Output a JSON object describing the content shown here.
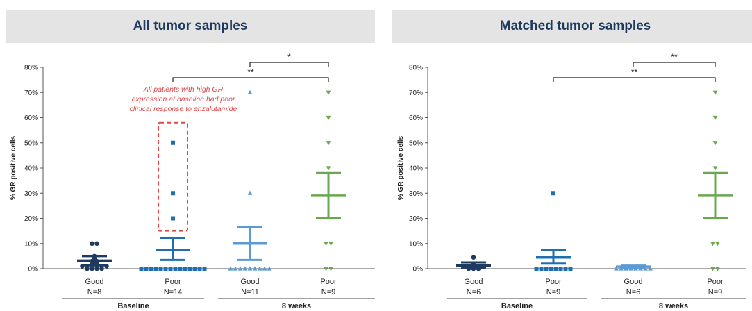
{
  "colors": {
    "dark_navy": "#1f3a5f",
    "mid_blue": "#1f6fb0",
    "light_blue": "#5b9bd5",
    "green": "#6aa84f",
    "annotation_red": "#e04848",
    "header_bg": "#e4e4e4"
  },
  "chart_data": [
    {
      "type": "scatter",
      "title": "All tumor samples",
      "ylabel": "% GR positive cells",
      "ylim": [
        0,
        80
      ],
      "yticks": [
        "0%",
        "10%",
        "20%",
        "30%",
        "40%",
        "50%",
        "60%",
        "70%",
        "80%"
      ],
      "categories": [
        {
          "label": "Good",
          "n": "N=8",
          "group": "Baseline",
          "color": "#1f3a5f",
          "marker": "circle",
          "points": [
            0,
            0,
            0,
            0,
            1,
            1,
            1,
            1,
            1,
            1,
            2,
            2,
            3,
            3,
            4,
            5,
            10,
            10
          ],
          "mean": 3.2,
          "sd_low": 1.5,
          "sd_high": 5
        },
        {
          "label": "Poor",
          "n": "N=14",
          "group": "Baseline",
          "color": "#1f6fb0",
          "marker": "square",
          "points": [
            0,
            0,
            0,
            0,
            0,
            0,
            0,
            0,
            0,
            0,
            0,
            0,
            0,
            0,
            20,
            30,
            50
          ],
          "mean": 7.5,
          "sd_low": 3.5,
          "sd_high": 12
        },
        {
          "label": "Good",
          "n": "N=11",
          "group": "8 weeks",
          "color": "#5b9bd5",
          "marker": "triangle-up",
          "points": [
            0,
            0,
            0,
            0,
            0,
            0,
            0,
            0,
            0,
            30,
            70
          ],
          "mean": 10,
          "sd_low": 3.5,
          "sd_high": 16.5
        },
        {
          "label": "Poor",
          "n": "N=9",
          "group": "8 weeks",
          "color": "#6aa84f",
          "marker": "triangle-down",
          "points": [
            0,
            0,
            10,
            10,
            40,
            50,
            60,
            70
          ],
          "mean": 29,
          "sd_low": 20,
          "sd_high": 38
        }
      ],
      "groups": [
        "Baseline",
        "8 weeks"
      ],
      "significance": [
        {
          "from": 2,
          "to": 3,
          "label": "*",
          "y": 81
        },
        {
          "from": 1,
          "to": 3,
          "label": "**",
          "y": 75
        }
      ],
      "annotation": "All patients with high GR expression at baseline had poor clinical response to enzalutamide",
      "annotation_lines": [
        "All patients with high GR",
        "expression at baseline had poor",
        "clinical response to enzalutamide"
      ]
    },
    {
      "type": "scatter",
      "title": "Matched tumor samples",
      "ylabel": "% GR positive cells",
      "ylim": [
        0,
        80
      ],
      "yticks": [
        "0%",
        "10%",
        "20%",
        "30%",
        "40%",
        "50%",
        "60%",
        "70%",
        "80%"
      ],
      "categories": [
        {
          "label": "Good",
          "n": "N=6",
          "group": "Baseline",
          "color": "#1f3a5f",
          "marker": "circle",
          "points": [
            0,
            0,
            0,
            1,
            1,
            1,
            1,
            2,
            4.5
          ],
          "mean": 1.3,
          "sd_low": 0.5,
          "sd_high": 2.5
        },
        {
          "label": "Poor",
          "n": "N=9",
          "group": "Baseline",
          "color": "#1f6fb0",
          "marker": "square",
          "points": [
            0,
            0,
            0,
            0,
            0,
            0,
            0,
            0,
            30
          ],
          "mean": 4.5,
          "sd_low": 2,
          "sd_high": 7.5
        },
        {
          "label": "Good",
          "n": "N=6",
          "group": "8 weeks",
          "color": "#5b9bd5",
          "marker": "triangle-up",
          "points": [
            0,
            0,
            0,
            0,
            0,
            0,
            0,
            0
          ],
          "mean": 0.8,
          "sd_low": 0.4,
          "sd_high": 1.2
        },
        {
          "label": "Poor",
          "n": "N=9",
          "group": "8 weeks",
          "color": "#6aa84f",
          "marker": "triangle-down",
          "points": [
            0,
            0,
            10,
            10,
            40,
            50,
            60,
            70
          ],
          "mean": 29,
          "sd_low": 20,
          "sd_high": 38
        }
      ],
      "groups": [
        "Baseline",
        "8 weeks"
      ],
      "significance": [
        {
          "from": 2,
          "to": 3,
          "label": "**",
          "y": 81
        },
        {
          "from": 1,
          "to": 3,
          "label": "**",
          "y": 75
        }
      ]
    }
  ]
}
